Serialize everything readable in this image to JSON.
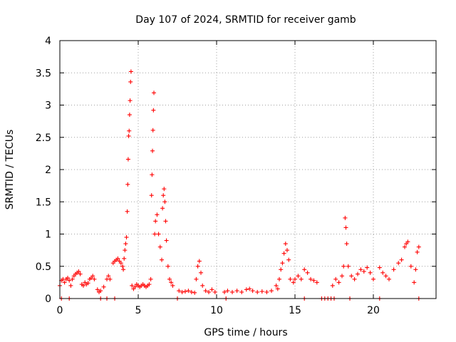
{
  "chart_data": {
    "type": "scatter",
    "title": "Day 107 of 2024, SRMTID for receiver gamb",
    "xlabel": "GPS time / hours",
    "ylabel": "SRMTID / TECUs",
    "xlim": [
      0,
      24
    ],
    "ylim": [
      0,
      4
    ],
    "xticks": [
      0,
      5,
      10,
      15,
      20
    ],
    "xtick_labels": [
      "0",
      "5",
      "10",
      "15",
      "20"
    ],
    "yticks": [
      0,
      0.5,
      1,
      1.5,
      2,
      2.5,
      3,
      3.5,
      4
    ],
    "ytick_labels": [
      "0",
      "0.5",
      "1",
      "1.5",
      "2",
      "2.5",
      "3",
      "3.5",
      "4"
    ],
    "grid": true,
    "marker": "plus",
    "series": [
      {
        "name": "gamb",
        "color": "#ff0000",
        "points": [
          [
            0.0,
            0.2
          ],
          [
            0.1,
            0.28
          ],
          [
            0.2,
            0.3
          ],
          [
            0.3,
            0.25
          ],
          [
            0.4,
            0.3
          ],
          [
            0.5,
            0.32
          ],
          [
            0.6,
            0.28
          ],
          [
            0.7,
            0.2
          ],
          [
            0.8,
            0.3
          ],
          [
            0.9,
            0.35
          ],
          [
            1.0,
            0.38
          ],
          [
            1.1,
            0.4
          ],
          [
            1.2,
            0.42
          ],
          [
            1.3,
            0.38
          ],
          [
            1.4,
            0.22
          ],
          [
            1.5,
            0.2
          ],
          [
            1.6,
            0.25
          ],
          [
            1.7,
            0.22
          ],
          [
            1.8,
            0.24
          ],
          [
            1.9,
            0.3
          ],
          [
            2.0,
            0.32
          ],
          [
            2.1,
            0.35
          ],
          [
            2.2,
            0.3
          ],
          [
            2.4,
            0.14
          ],
          [
            2.5,
            0.1
          ],
          [
            2.6,
            0.12
          ],
          [
            2.8,
            0.18
          ],
          [
            3.0,
            0.3
          ],
          [
            3.1,
            0.35
          ],
          [
            3.2,
            0.3
          ],
          [
            3.4,
            0.55
          ],
          [
            3.5,
            0.58
          ],
          [
            3.6,
            0.6
          ],
          [
            3.7,
            0.62
          ],
          [
            3.8,
            0.58
          ],
          [
            3.9,
            0.55
          ],
          [
            4.0,
            0.5
          ],
          [
            4.05,
            0.45
          ],
          [
            4.1,
            0.62
          ],
          [
            4.15,
            0.75
          ],
          [
            4.2,
            0.85
          ],
          [
            4.25,
            0.95
          ],
          [
            4.3,
            1.35
          ],
          [
            4.33,
            1.77
          ],
          [
            4.36,
            2.16
          ],
          [
            4.39,
            2.52
          ],
          [
            4.42,
            2.6
          ],
          [
            4.45,
            2.85
          ],
          [
            4.48,
            3.07
          ],
          [
            4.51,
            3.36
          ],
          [
            4.54,
            3.52
          ],
          [
            4.6,
            0.2
          ],
          [
            4.7,
            0.15
          ],
          [
            4.8,
            0.18
          ],
          [
            4.9,
            0.22
          ],
          [
            5.0,
            0.2
          ],
          [
            5.1,
            0.18
          ],
          [
            5.2,
            0.2
          ],
          [
            5.3,
            0.22
          ],
          [
            5.4,
            0.2
          ],
          [
            5.5,
            0.18
          ],
          [
            5.6,
            0.2
          ],
          [
            5.7,
            0.22
          ],
          [
            5.8,
            0.3
          ],
          [
            5.85,
            1.6
          ],
          [
            5.88,
            1.92
          ],
          [
            5.91,
            2.29
          ],
          [
            5.94,
            2.61
          ],
          [
            5.97,
            2.92
          ],
          [
            6.0,
            3.19
          ],
          [
            6.05,
            1.0
          ],
          [
            6.1,
            1.2
          ],
          [
            6.2,
            1.3
          ],
          [
            6.3,
            1.0
          ],
          [
            6.4,
            0.8
          ],
          [
            6.5,
            0.6
          ],
          [
            6.55,
            1.4
          ],
          [
            6.6,
            1.6
          ],
          [
            6.65,
            1.7
          ],
          [
            6.7,
            1.5
          ],
          [
            6.75,
            1.2
          ],
          [
            6.8,
            0.9
          ],
          [
            6.9,
            0.5
          ],
          [
            7.0,
            0.3
          ],
          [
            7.1,
            0.25
          ],
          [
            7.2,
            0.2
          ],
          [
            7.6,
            0.12
          ],
          [
            7.8,
            0.1
          ],
          [
            8.0,
            0.11
          ],
          [
            8.2,
            0.12
          ],
          [
            8.4,
            0.1
          ],
          [
            8.6,
            0.09
          ],
          [
            8.7,
            0.3
          ],
          [
            8.8,
            0.5
          ],
          [
            8.9,
            0.58
          ],
          [
            9.0,
            0.4
          ],
          [
            9.1,
            0.2
          ],
          [
            9.3,
            0.12
          ],
          [
            9.5,
            0.1
          ],
          [
            9.7,
            0.14
          ],
          [
            9.9,
            0.1
          ],
          [
            10.5,
            0.1
          ],
          [
            10.7,
            0.12
          ],
          [
            11.0,
            0.1
          ],
          [
            11.3,
            0.12
          ],
          [
            11.6,
            0.1
          ],
          [
            11.9,
            0.14
          ],
          [
            12.1,
            0.15
          ],
          [
            12.3,
            0.12
          ],
          [
            12.6,
            0.1
          ],
          [
            12.9,
            0.11
          ],
          [
            13.2,
            0.1
          ],
          [
            13.5,
            0.12
          ],
          [
            13.8,
            0.2
          ],
          [
            13.9,
            0.15
          ],
          [
            14.0,
            0.3
          ],
          [
            14.1,
            0.45
          ],
          [
            14.2,
            0.55
          ],
          [
            14.3,
            0.7
          ],
          [
            14.4,
            0.85
          ],
          [
            14.5,
            0.75
          ],
          [
            14.6,
            0.6
          ],
          [
            14.7,
            0.3
          ],
          [
            14.9,
            0.25
          ],
          [
            15.0,
            0.3
          ],
          [
            15.2,
            0.35
          ],
          [
            15.4,
            0.3
          ],
          [
            15.6,
            0.45
          ],
          [
            15.8,
            0.4
          ],
          [
            16.0,
            0.3
          ],
          [
            16.2,
            0.28
          ],
          [
            16.4,
            0.25
          ],
          [
            17.4,
            0.2
          ],
          [
            17.6,
            0.3
          ],
          [
            17.8,
            0.25
          ],
          [
            18.0,
            0.35
          ],
          [
            18.1,
            0.5
          ],
          [
            18.2,
            1.25
          ],
          [
            18.25,
            1.1
          ],
          [
            18.3,
            0.85
          ],
          [
            18.4,
            0.5
          ],
          [
            18.6,
            0.35
          ],
          [
            18.8,
            0.3
          ],
          [
            19.0,
            0.38
          ],
          [
            19.2,
            0.45
          ],
          [
            19.4,
            0.42
          ],
          [
            19.6,
            0.48
          ],
          [
            19.8,
            0.4
          ],
          [
            20.0,
            0.3
          ],
          [
            20.4,
            0.48
          ],
          [
            20.6,
            0.4
          ],
          [
            20.8,
            0.35
          ],
          [
            21.0,
            0.3
          ],
          [
            21.3,
            0.45
          ],
          [
            21.6,
            0.55
          ],
          [
            21.8,
            0.6
          ],
          [
            22.0,
            0.8
          ],
          [
            22.1,
            0.85
          ],
          [
            22.2,
            0.88
          ],
          [
            22.4,
            0.5
          ],
          [
            22.6,
            0.25
          ],
          [
            22.7,
            0.45
          ],
          [
            22.8,
            0.72
          ],
          [
            22.9,
            0.8
          ],
          [
            0.1,
            0.0
          ],
          [
            0.6,
            0.0
          ],
          [
            2.6,
            0.0
          ],
          [
            3.0,
            0.0
          ],
          [
            3.5,
            0.0
          ],
          [
            7.5,
            0.0
          ],
          [
            10.6,
            0.0
          ],
          [
            15.6,
            0.0
          ],
          [
            16.7,
            0.0
          ],
          [
            16.9,
            0.0
          ],
          [
            17.1,
            0.0
          ],
          [
            17.3,
            0.0
          ],
          [
            17.5,
            0.0
          ],
          [
            18.5,
            0.0
          ],
          [
            20.4,
            0.0
          ],
          [
            22.9,
            0.0
          ]
        ]
      }
    ]
  }
}
